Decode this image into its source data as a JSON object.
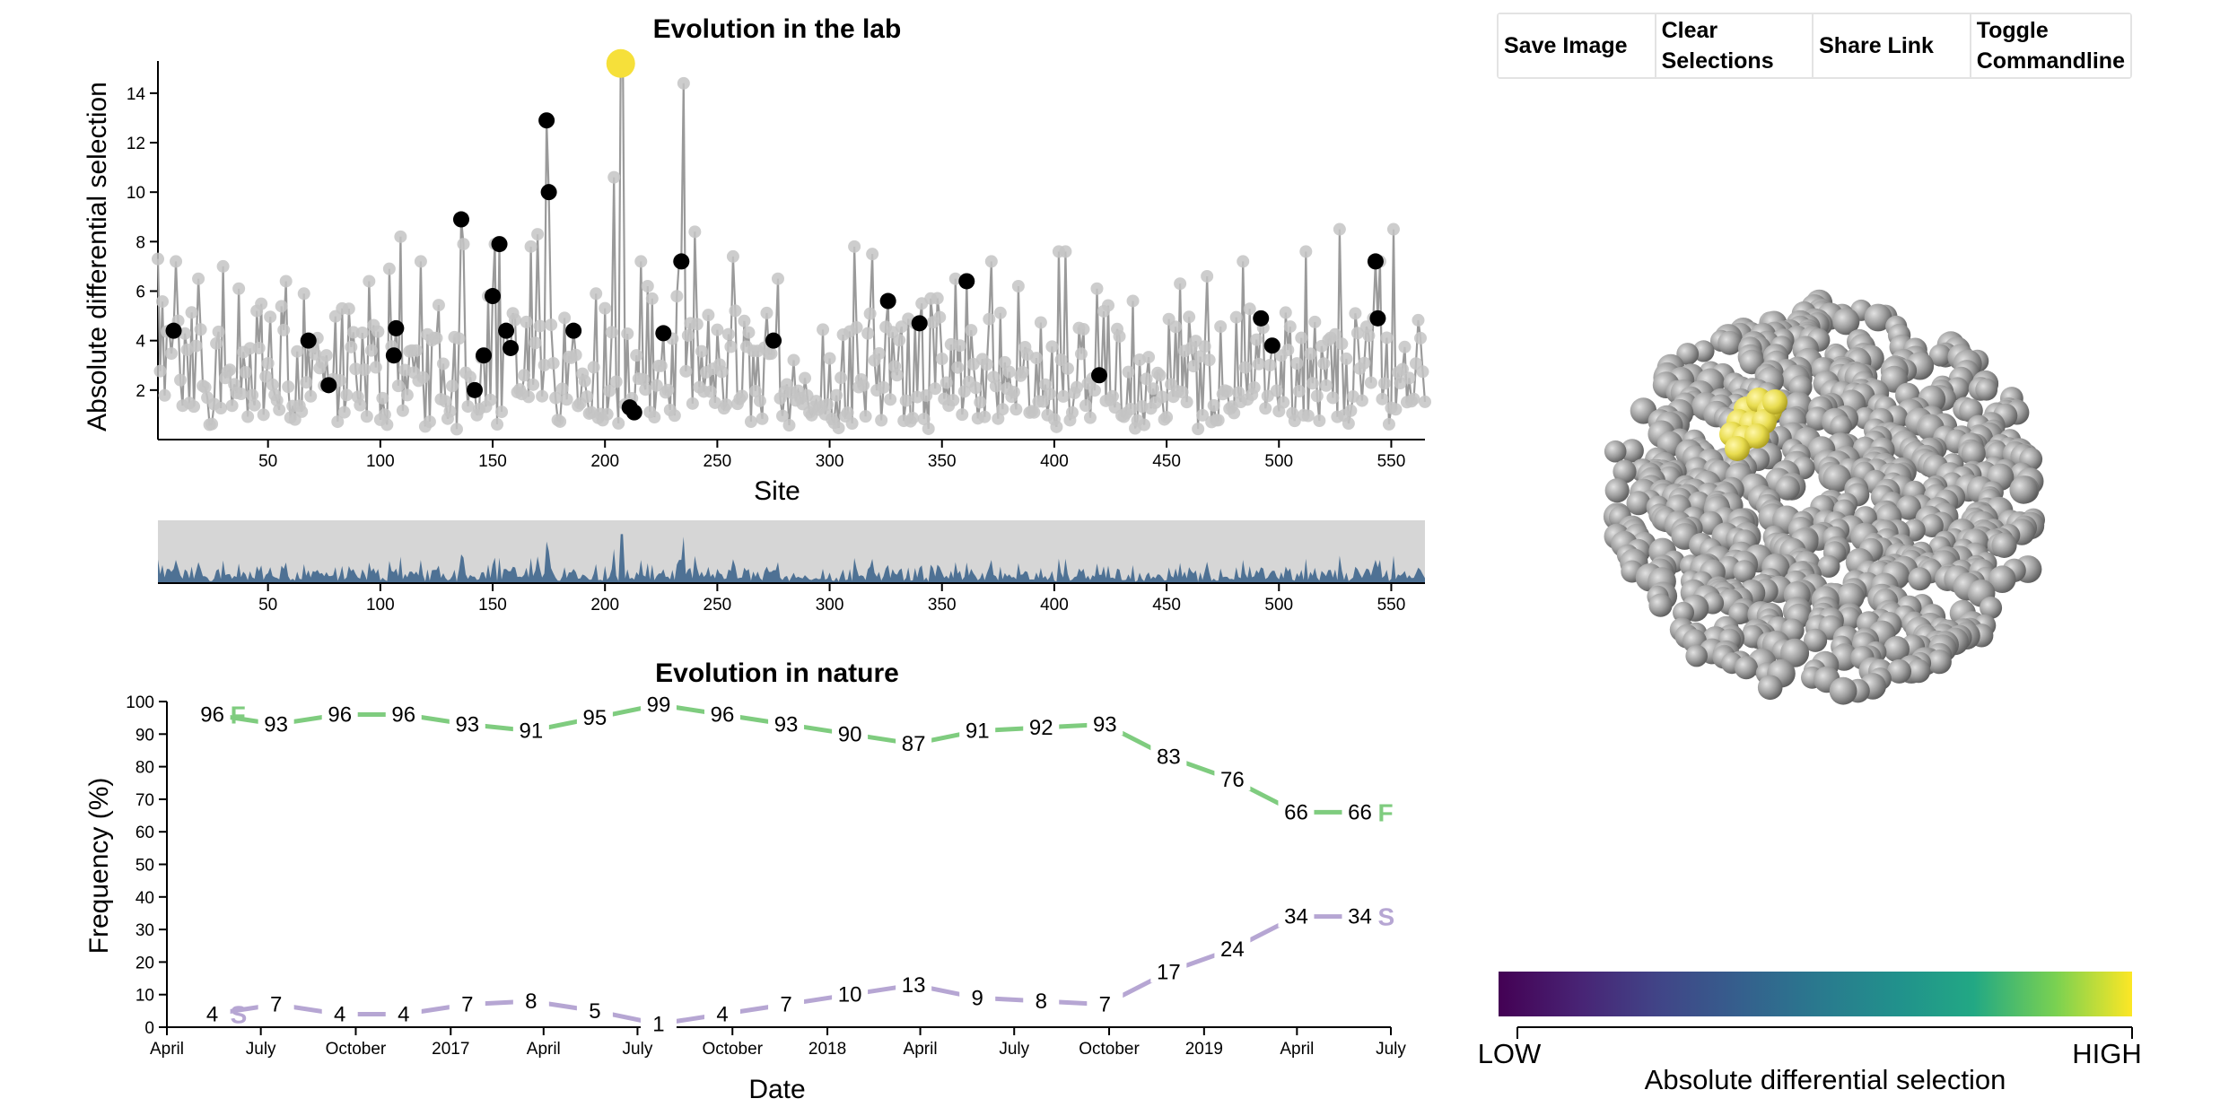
{
  "toolbar": {
    "save_label": "Save Image",
    "clear_label": "Clear Selections",
    "share_label": "Share Link",
    "toggle_label": "Toggle Commandline"
  },
  "colors": {
    "lab_line": "#9a9a9a",
    "lab_point": "#c4c4c4",
    "selected_point": "#000000",
    "highlight_point": "#f6e03a",
    "context_area": "#4e7194",
    "context_bg": "#d6d6d6",
    "series_F": "#7fcc7f",
    "series_S": "#b6a6d3",
    "protein": "#9c9c9c",
    "protein_highlight": "#e8df52"
  },
  "chart_data": [
    {
      "id": "lab",
      "type": "line",
      "title": "Evolution in the lab",
      "xlabel": "Site",
      "ylabel": "Absolute differential selection",
      "xlim": [
        1,
        565
      ],
      "ylim": [
        0,
        15.3
      ],
      "xticks": [
        50,
        100,
        150,
        200,
        250,
        300,
        350,
        400,
        450,
        500,
        550
      ],
      "yticks": [
        2,
        4,
        6,
        8,
        10,
        12,
        14
      ],
      "n_sites": 565,
      "peaks": [
        [
          1,
          7.3
        ],
        [
          6,
          4.4
        ],
        [
          9,
          7.2
        ],
        [
          19,
          6.5
        ],
        [
          30,
          7.0
        ],
        [
          37,
          6.1
        ],
        [
          45,
          5.2
        ],
        [
          58,
          6.4
        ],
        [
          66,
          5.9
        ],
        [
          72,
          4.1
        ],
        [
          78,
          2.2
        ],
        [
          83,
          5.3
        ],
        [
          95,
          6.4
        ],
        [
          104,
          6.9
        ],
        [
          107,
          3.4
        ],
        [
          109,
          8.2
        ],
        [
          116,
          3.6
        ],
        [
          118,
          7.2
        ],
        [
          125,
          4.1
        ],
        [
          136,
          8.9
        ],
        [
          137,
          7.9
        ],
        [
          141,
          2.0
        ],
        [
          145,
          3.3
        ],
        [
          148,
          5.8
        ],
        [
          151,
          7.9
        ],
        [
          155,
          4.4
        ],
        [
          157,
          3.7
        ],
        [
          164,
          2.6
        ],
        [
          167,
          7.8
        ],
        [
          170,
          8.3
        ],
        [
          174,
          13.0
        ],
        [
          175,
          9.9
        ],
        [
          186,
          4.3
        ],
        [
          196,
          5.9
        ],
        [
          204,
          10.6
        ],
        [
          208,
          15.2
        ],
        [
          211,
          1.3
        ],
        [
          213,
          1.1
        ],
        [
          216,
          7.2
        ],
        [
          219,
          6.2
        ],
        [
          226,
          4.2
        ],
        [
          233,
          7.2
        ],
        [
          235,
          14.4
        ],
        [
          238,
          4.7
        ],
        [
          240,
          8.4
        ],
        [
          257,
          7.4
        ],
        [
          276,
          4.0
        ],
        [
          277,
          6.5
        ],
        [
          311,
          7.8
        ],
        [
          319,
          7.5
        ],
        [
          326,
          5.6
        ],
        [
          338,
          4.7
        ],
        [
          341,
          5.5
        ],
        [
          345,
          5.7
        ],
        [
          356,
          6.5
        ],
        [
          361,
          6.4
        ],
        [
          372,
          7.2
        ],
        [
          384,
          6.2
        ],
        [
          402,
          7.6
        ],
        [
          405,
          7.6
        ],
        [
          419,
          6.1
        ],
        [
          421,
          2.6
        ],
        [
          456,
          6.3
        ],
        [
          468,
          6.6
        ],
        [
          484,
          7.2
        ],
        [
          492,
          4.9
        ],
        [
          498,
          3.8
        ],
        [
          512,
          7.6
        ],
        [
          527,
          8.5
        ],
        [
          534,
          5.1
        ],
        [
          542,
          4.9
        ],
        [
          545,
          7.2
        ],
        [
          551,
          8.5
        ],
        [
          563,
          4.1
        ]
      ],
      "selected_sites": [
        [
          8,
          4.4
        ],
        [
          68,
          4.0
        ],
        [
          77,
          2.2
        ],
        [
          106,
          3.4
        ],
        [
          107,
          4.5
        ],
        [
          136,
          8.9
        ],
        [
          142,
          2.0
        ],
        [
          146,
          3.4
        ],
        [
          150,
          5.8
        ],
        [
          153,
          7.9
        ],
        [
          156,
          4.4
        ],
        [
          158,
          3.7
        ],
        [
          174,
          12.9
        ],
        [
          175,
          10.0
        ],
        [
          186,
          4.4
        ],
        [
          211,
          1.3
        ],
        [
          213,
          1.1
        ],
        [
          226,
          4.3
        ],
        [
          234,
          7.2
        ],
        [
          275,
          4.0
        ],
        [
          326,
          5.6
        ],
        [
          340,
          4.7
        ],
        [
          361,
          6.4
        ],
        [
          420,
          2.6
        ],
        [
          492,
          4.9
        ],
        [
          497,
          3.8
        ],
        [
          543,
          7.2
        ],
        [
          544,
          4.9
        ]
      ],
      "highlighted_site": [
        207,
        15.2
      ]
    },
    {
      "id": "context",
      "type": "area",
      "xticks": [
        50,
        100,
        150,
        200,
        250,
        300,
        350,
        400,
        450,
        500,
        550
      ],
      "xlim": [
        1,
        565
      ]
    },
    {
      "id": "nature",
      "type": "line",
      "title": "Evolution in nature",
      "xlabel": "Date",
      "ylabel": "Frequency (%)",
      "ylim": [
        0,
        100
      ],
      "yticks": [
        0,
        10,
        20,
        30,
        40,
        50,
        60,
        70,
        80,
        90,
        100
      ],
      "x_tick_labels": [
        "April",
        "July",
        "October",
        "2017",
        "April",
        "July",
        "October",
        "2018",
        "April",
        "July",
        "October",
        "2019",
        "April",
        "July"
      ],
      "x_tick_dates": [
        "2016-04-01",
        "2016-07-01",
        "2016-10-01",
        "2017-01-01",
        "2017-04-01",
        "2017-07-01",
        "2017-10-01",
        "2018-01-01",
        "2018-04-01",
        "2018-07-01",
        "2018-10-01",
        "2019-01-01",
        "2019-04-01",
        "2019-07-01"
      ],
      "x": [
        "2016-05-15",
        "2016-07-01",
        "2016-08-15",
        "2016-10-01",
        "2016-11-15",
        "2017-01-01",
        "2017-02-15",
        "2017-04-01",
        "2017-05-15",
        "2017-07-01",
        "2017-08-15",
        "2017-10-01",
        "2017-11-15",
        "2018-01-01",
        "2018-02-15",
        "2018-04-01",
        "2018-05-15",
        "2018-07-01",
        "2018-08-15",
        "2018-10-01",
        "2018-11-15",
        "2019-01-01",
        "2019-02-15",
        "2019-04-01",
        "2019-05-15",
        "2019-07-01"
      ],
      "series": [
        {
          "name": "F",
          "values": [
            96,
            null,
            93,
            null,
            96,
            null,
            96,
            null,
            93,
            null,
            91,
            null,
            95,
            null,
            99,
            null,
            96,
            null,
            93,
            null,
            90,
            null,
            87,
            null,
            91,
            null
          ]
        },
        {
          "name": "S",
          "values": [
            4,
            null,
            7,
            null,
            4,
            null,
            4,
            null,
            7,
            null,
            8,
            null,
            5,
            null,
            1,
            null,
            4,
            null,
            7,
            null,
            10,
            null,
            13,
            null,
            9,
            null
          ]
        }
      ],
      "series_points": {
        "F": [
          96,
          93,
          96,
          96,
          93,
          91,
          95,
          99,
          96,
          93,
          90,
          87,
          91,
          92,
          93,
          83,
          76,
          66,
          66
        ],
        "S": [
          4,
          7,
          4,
          4,
          7,
          8,
          5,
          1,
          4,
          7,
          10,
          13,
          9,
          8,
          7,
          17,
          24,
          34,
          34
        ]
      },
      "series_point_dates": [
        "2016-05",
        "2016-06",
        "2016-07",
        "2016-08",
        "2016-09",
        "2016-10",
        "2016-11",
        "2016-12",
        "2017-01",
        "2017-02",
        "2017-03",
        "2017-04",
        "2017-05",
        "2017-06",
        "2017-07",
        "2017-08",
        "2017-09",
        "2017-10",
        "2017-11"
      ]
    }
  ],
  "colorbar": {
    "low_label": "LOW",
    "high_label": "HIGH",
    "title": "Absolute differential selection"
  }
}
